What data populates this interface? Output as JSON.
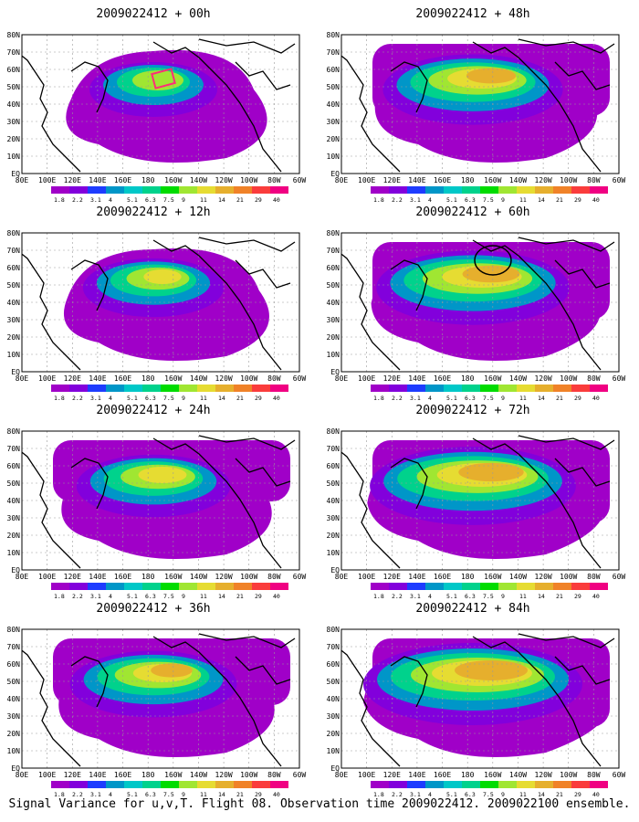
{
  "panels": [
    {
      "title": "2009022412 + 00h",
      "level": 0,
      "box": true,
      "circle": false
    },
    {
      "title": "2009022412 + 48h",
      "level": 4,
      "box": false,
      "circle": false
    },
    {
      "title": "2009022412 + 12h",
      "level": 1,
      "box": false,
      "circle": false
    },
    {
      "title": "2009022412 + 60h",
      "level": 5,
      "box": false,
      "circle": true
    },
    {
      "title": "2009022412 + 24h",
      "level": 2,
      "box": false,
      "circle": false
    },
    {
      "title": "2009022412 + 72h",
      "level": 6,
      "box": false,
      "circle": false
    },
    {
      "title": "2009022412 + 36h",
      "level": 3,
      "box": false,
      "circle": false
    },
    {
      "title": "2009022412 + 84h",
      "level": 7,
      "box": false,
      "circle": false
    }
  ],
  "lat_labels": [
    "80N",
    "70N",
    "60N",
    "50N",
    "40N",
    "30N",
    "20N",
    "10N",
    "EQ"
  ],
  "lon_labels": [
    "80E",
    "100E",
    "120E",
    "140E",
    "160E",
    "180",
    "160W",
    "140W",
    "120W",
    "100W",
    "80W",
    "60W"
  ],
  "colorbar": {
    "labels": [
      "1.8",
      "2.2",
      "3.1",
      "4",
      "5.1",
      "6.3",
      "7.5",
      "9",
      "11",
      "14",
      "21",
      "29",
      "40"
    ],
    "colors": [
      "#a000c8",
      "#8200dc",
      "#1e3cff",
      "#0096c8",
      "#00c8c8",
      "#00d28c",
      "#00dc00",
      "#a0e632",
      "#e6dc32",
      "#e6af2d",
      "#f08228",
      "#fa3c3c",
      "#f00082"
    ]
  },
  "footer": "Signal Variance for u,v,T. Flight 08. Observation time 2009022412. 2009022100 ensemble."
}
